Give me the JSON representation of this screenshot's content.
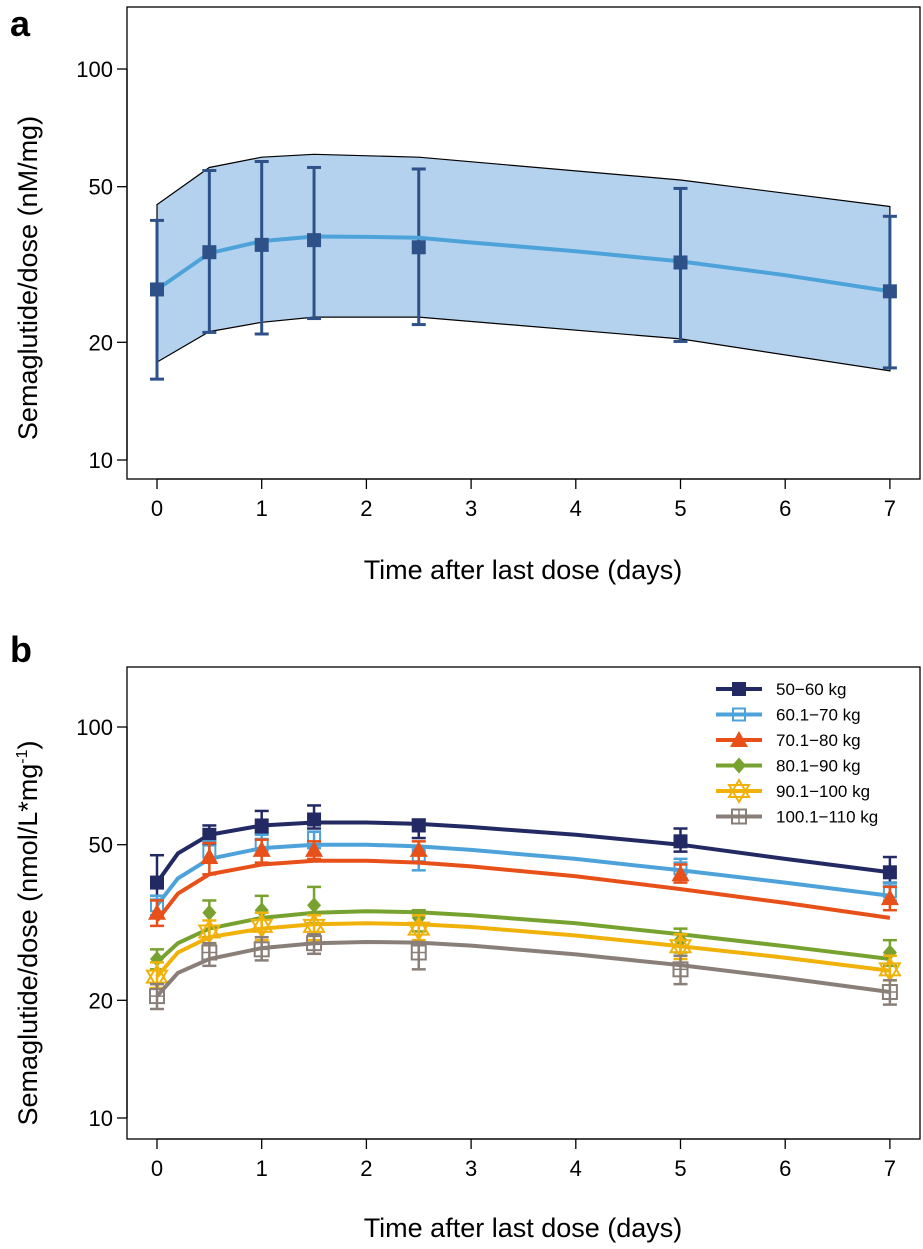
{
  "figure": {
    "panels": [
      {
        "id": "a",
        "letter": "a",
        "xlabel": "Time after last dose (days)",
        "ylabel": "Semaglutide/dose (nM/mg)"
      },
      {
        "id": "b",
        "letter": "b",
        "xlabel": "Time after last dose (days)",
        "ylabel": "Semaglutide/dose (nmol/L*mg",
        "ylabel_sup": "-1",
        "ylabel_end": ")"
      }
    ]
  },
  "chart_data": [
    {
      "type": "line",
      "panel": "a",
      "xlabel": "Time after last dose (days)",
      "ylabel": "Semaglutide/dose (nM/mg)",
      "xlim": [
        0,
        7
      ],
      "ylim": [
        10,
        130
      ],
      "yscale": "log",
      "xticks": [
        0,
        1,
        2,
        3,
        4,
        5,
        6,
        7
      ],
      "yticks": [
        10,
        20,
        50,
        100
      ],
      "grid": false,
      "band": {
        "color": "#b4d2ee",
        "x": [
          0,
          0.5,
          1,
          1.5,
          2.5,
          5,
          7
        ],
        "upper": [
          45,
          56,
          59.5,
          60.5,
          59.5,
          52,
          44.5
        ],
        "lower": [
          17.8,
          21.3,
          22.5,
          23.2,
          23.2,
          20.4,
          16.9
        ]
      },
      "series": [
        {
          "color": "#4da3d9",
          "line_x": [
            0,
            0.5,
            1,
            1.5,
            2,
            2.5,
            3,
            4,
            5,
            6,
            7
          ],
          "line_y": [
            27.3,
            33.8,
            36.3,
            37.3,
            37.2,
            37.0,
            36.0,
            34.2,
            32.2,
            29.7,
            27.0
          ]
        }
      ],
      "observed": {
        "color": "#2d5188",
        "x": [
          0,
          0.5,
          1,
          1.5,
          2.5,
          5,
          7
        ],
        "y": [
          27.3,
          34,
          35.5,
          36.5,
          35,
          32,
          27
        ],
        "err_low": [
          16.1,
          21.2,
          21.0,
          23.0,
          22.2,
          20.1,
          17.2
        ],
        "err_high": [
          41,
          55,
          58,
          56,
          55.5,
          49.5,
          42
        ]
      }
    },
    {
      "type": "line",
      "panel": "b",
      "xlabel": "Time after last dose (days)",
      "ylabel": "Semaglutide/dose (nmol/L*mg-1)",
      "xlim": [
        0,
        7
      ],
      "ylim": [
        10,
        130
      ],
      "yscale": "log",
      "xticks": [
        0,
        1,
        2,
        3,
        4,
        5,
        6,
        7
      ],
      "yticks": [
        10,
        20,
        50,
        100
      ],
      "grid": false,
      "legend_position": "top-right",
      "x": [
        0,
        0.5,
        1,
        1.5,
        2.5,
        5,
        7
      ],
      "series": [
        {
          "name": "50−60 kg",
          "color": "#232a63",
          "marker": "square-filled",
          "line_x": [
            0,
            0.2,
            0.5,
            1,
            1.5,
            2,
            2.5,
            3,
            4,
            5,
            6,
            7
          ],
          "line_y": [
            40,
            47.5,
            53,
            56,
            57,
            57,
            56.5,
            55.5,
            53,
            50,
            46,
            42.5
          ],
          "obs_y": [
            40,
            53,
            56,
            58,
            56,
            51,
            42.5
          ],
          "err_low": [
            37,
            50,
            53.5,
            55,
            52,
            48,
            40
          ],
          "err_high": [
            47,
            56,
            61,
            63,
            58,
            55,
            46.5
          ]
        },
        {
          "name": "60.1−70 kg",
          "color": "#4da3d9",
          "marker": "square-open",
          "line_x": [
            0,
            0.2,
            0.5,
            1,
            1.5,
            2,
            2.5,
            3,
            4,
            5,
            6,
            7
          ],
          "line_y": [
            35,
            41,
            46,
            49,
            50,
            50,
            49.5,
            48.5,
            46,
            43,
            40,
            37
          ],
          "obs_y": [
            35,
            48,
            50,
            52,
            47,
            43.5,
            38
          ],
          "err_low": [
            33,
            45,
            47,
            49,
            43,
            41,
            36
          ],
          "err_high": [
            37,
            51,
            53,
            54,
            49.5,
            46,
            40
          ]
        },
        {
          "name": "70.1−80 kg",
          "color": "#e8501a",
          "marker": "triangle-filled",
          "line_x": [
            0,
            0.2,
            0.5,
            1,
            1.5,
            2,
            2.5,
            3,
            4,
            5,
            6,
            7
          ],
          "line_y": [
            32,
            37.5,
            42,
            44.5,
            45.5,
            45.5,
            45,
            44,
            41.5,
            38.5,
            35.5,
            32.5
          ],
          "obs_y": [
            33.5,
            46.5,
            48.5,
            48.5,
            48.5,
            42,
            36.5
          ],
          "err_low": [
            31,
            42,
            45,
            46,
            45,
            40,
            34
          ],
          "err_high": [
            36,
            50.5,
            51.5,
            51,
            51,
            44.5,
            39
          ]
        },
        {
          "name": "80.1−90 kg",
          "color": "#78a22f",
          "marker": "diamond-filled",
          "line_x": [
            0,
            0.2,
            0.5,
            1,
            1.5,
            2,
            2.5,
            3,
            4,
            5,
            6,
            7
          ],
          "line_y": [
            25,
            28,
            30.5,
            32.5,
            33.5,
            33.8,
            33.6,
            33,
            31.5,
            29.5,
            27.5,
            25.5
          ],
          "obs_y": [
            25.5,
            33.5,
            34,
            35,
            32.5,
            28.5,
            26.5
          ],
          "err_low": [
            24,
            29,
            30.5,
            31.5,
            30,
            26.5,
            24.5
          ],
          "err_high": [
            27,
            36,
            37,
            39,
            34,
            30.5,
            28.5
          ]
        },
        {
          "name": "90.1−100 kg",
          "color": "#f0b20a",
          "marker": "star-open",
          "line_x": [
            0,
            0.2,
            0.5,
            1,
            1.5,
            2,
            2.5,
            3,
            4,
            5,
            6,
            7
          ],
          "line_y": [
            23,
            26.5,
            29,
            30.5,
            31.3,
            31.5,
            31.3,
            30.8,
            29.3,
            27.5,
            25.7,
            23.8
          ],
          "obs_y": [
            23,
            30,
            31,
            31,
            30.5,
            27.5,
            24
          ],
          "err_low": [
            21.5,
            28,
            28.5,
            28.5,
            28.5,
            25.5,
            22.5
          ],
          "err_high": [
            25,
            32,
            33.5,
            33,
            33,
            29.5,
            26
          ]
        },
        {
          "name": "100.1−110 kg",
          "color": "#8a7f78",
          "marker": "square-crossed",
          "line_x": [
            0,
            0.2,
            0.5,
            1,
            1.5,
            2,
            2.5,
            3,
            4,
            5,
            6,
            7
          ],
          "line_y": [
            20.5,
            23.5,
            25.5,
            27.2,
            28,
            28.2,
            28.1,
            27.6,
            26.2,
            24.6,
            22.8,
            21
          ],
          "obs_y": [
            20.5,
            26.5,
            27,
            28,
            26.5,
            24,
            21
          ],
          "err_low": [
            19,
            24.5,
            25.3,
            26.3,
            24,
            22,
            19.5
          ],
          "err_high": [
            22,
            28,
            29,
            29.5,
            28,
            26,
            22.5
          ]
        }
      ]
    }
  ]
}
